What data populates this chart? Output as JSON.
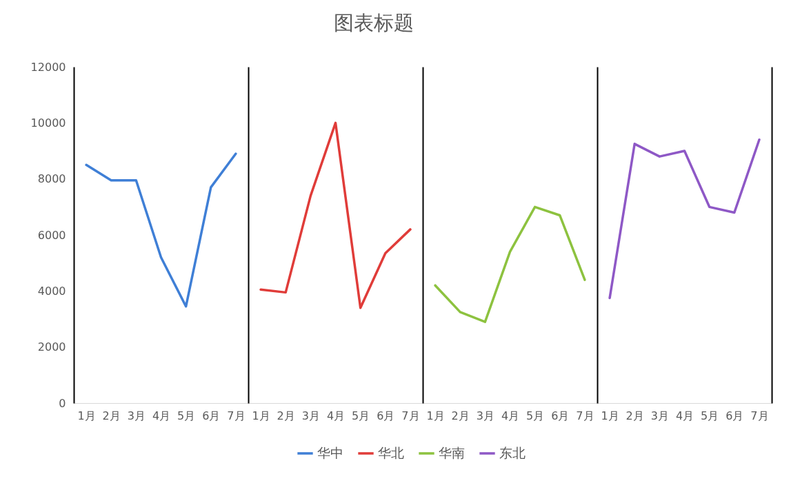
{
  "chart_data": [
    {
      "type": "line",
      "categories": [
        "1月",
        "2月",
        "3月",
        "4月",
        "5月",
        "6月",
        "7月"
      ],
      "ylim": [
        0,
        12000
      ],
      "yticks": [
        0,
        2000,
        4000,
        6000,
        8000,
        10000,
        12000
      ],
      "series": [
        {
          "name": "华中",
          "color": "#3f7fd6",
          "values": [
            8500,
            7950,
            7950,
            5200,
            3450,
            7700,
            8900
          ]
        }
      ],
      "grid": false,
      "legend": "bottom",
      "marker": "none",
      "line_style": "solid"
    },
    {
      "type": "line",
      "title": "图表标题",
      "categories": [
        "1月",
        "2月",
        "3月",
        "4月",
        "5月",
        "6月",
        "7月"
      ],
      "ylim": [
        0,
        12000
      ],
      "yticks": [
        0,
        2000,
        4000,
        6000,
        8000,
        10000,
        12000
      ],
      "tick_labels": "x",
      "series": [
        {
          "name": "华北",
          "color": "#e03c39",
          "values": [
            4050,
            3950,
            7400,
            10000,
            3400,
            5350,
            6200
          ]
        }
      ],
      "grid": false,
      "legend": "bottom",
      "marker": "none",
      "line_style": "solid"
    },
    {
      "type": "line",
      "categories": [
        "1月",
        "2月",
        "3月",
        "4月",
        "5月",
        "6月",
        "7月"
      ],
      "ylim": [
        0,
        12000
      ],
      "yticks": [
        0,
        2000,
        4000,
        6000,
        8000,
        10000,
        12000
      ],
      "tick_labels": "x",
      "series": [
        {
          "name": "华南",
          "color": "#8dc23f",
          "values": [
            4200,
            3250,
            2900,
            5400,
            7000,
            6700,
            4400
          ]
        }
      ],
      "grid": false,
      "legend": "bottom",
      "marker": "none",
      "line_style": "solid"
    },
    {
      "type": "line",
      "categories": [
        "1月",
        "2月",
        "3月",
        "4月",
        "5月",
        "6月",
        "7月"
      ],
      "ylim": [
        0,
        12000
      ],
      "yticks": [
        0,
        2000,
        4000,
        6000,
        8000,
        10000,
        12000
      ],
      "tick_labels": "x",
      "series": [
        {
          "name": "东北",
          "color": "#8e58c6",
          "values": [
            3750,
            9250,
            8800,
            9000,
            7000,
            6800,
            9400
          ]
        }
      ],
      "grid": false,
      "legend": "bottom",
      "marker": "none",
      "line_style": "solid"
    }
  ]
}
